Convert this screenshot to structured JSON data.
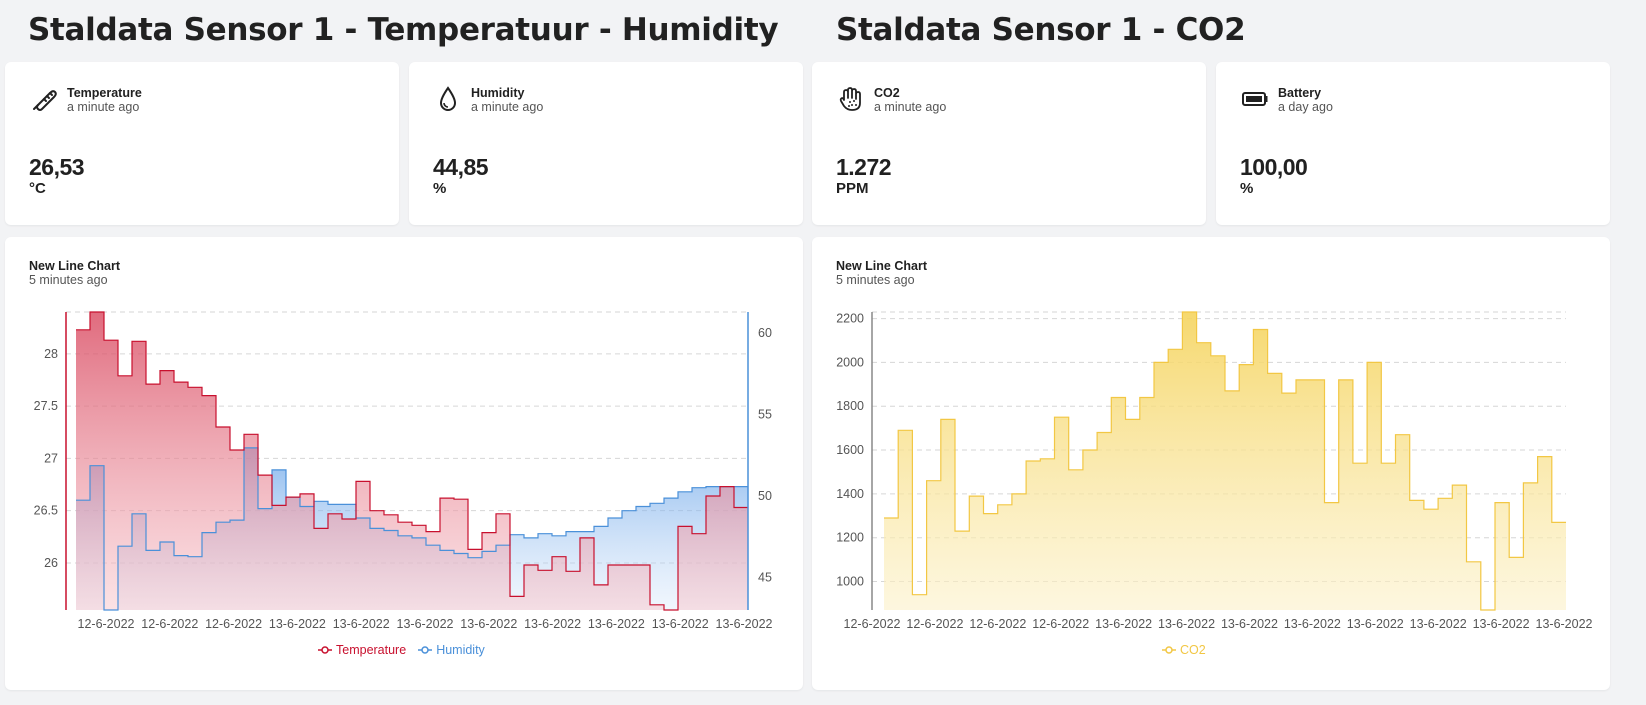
{
  "sections": [
    {
      "title": "Staldata Sensor 1 - Temperatuur - Humidity"
    },
    {
      "title": "Staldata Sensor 1 - CO2"
    }
  ],
  "metrics": [
    {
      "name": "Temperature",
      "time": "a minute ago",
      "value": "26,53",
      "unit": "°C",
      "icon": "thermometer-icon"
    },
    {
      "name": "Humidity",
      "time": "a minute ago",
      "value": "44,85",
      "unit": "%",
      "icon": "water-drop-icon"
    },
    {
      "name": "CO2",
      "time": "a minute ago",
      "value": "1.272",
      "unit": "PPM",
      "icon": "hand-dots-icon"
    },
    {
      "name": "Battery",
      "time": "a day ago",
      "value": "100,00",
      "unit": "%",
      "icon": "battery-icon"
    }
  ],
  "charts": [
    {
      "title": "New Line Chart",
      "time": "5 minutes ago"
    },
    {
      "title": "New Line Chart",
      "time": "5 minutes ago"
    }
  ],
  "chart_data": [
    {
      "type": "area",
      "x_ticks": [
        "12-6-2022",
        "12-6-2022",
        "12-6-2022",
        "13-6-2022",
        "13-6-2022",
        "13-6-2022",
        "13-6-2022",
        "13-6-2022",
        "13-6-2022",
        "13-6-2022",
        "13-6-2022"
      ],
      "y_left": {
        "ticks": [
          "26",
          "26.5",
          "27",
          "27.5",
          "28"
        ],
        "range": [
          25.55,
          28.4
        ]
      },
      "y_right": {
        "ticks": [
          "45",
          "50",
          "55",
          "60"
        ],
        "range": [
          43.0,
          61.3
        ]
      },
      "series": [
        {
          "name": "Temperature",
          "color": "#c8102e",
          "axis": "left",
          "values": [
            28.23,
            28.4,
            28.13,
            27.79,
            28.12,
            27.71,
            27.84,
            27.73,
            27.68,
            27.6,
            27.3,
            27.08,
            27.23,
            26.84,
            26.55,
            26.63,
            26.66,
            26.33,
            26.47,
            26.42,
            26.78,
            26.5,
            26.46,
            26.39,
            26.36,
            26.3,
            26.62,
            26.61,
            26.13,
            26.29,
            26.47,
            25.68,
            25.98,
            25.93,
            26.06,
            25.92,
            26.24,
            25.79,
            25.98,
            25.98,
            25.98,
            25.6,
            25.55,
            26.35,
            26.28,
            26.64,
            26.73,
            26.53
          ]
        },
        {
          "name": "Humidity",
          "color": "#4a90d9",
          "axis": "left",
          "values": [
            26.6,
            26.93,
            25.55,
            26.16,
            26.47,
            26.12,
            26.2,
            26.07,
            26.06,
            26.29,
            26.39,
            26.41,
            27.1,
            26.52,
            26.89,
            26.63,
            26.54,
            26.59,
            26.56,
            26.56,
            26.43,
            26.33,
            26.31,
            26.26,
            26.24,
            26.17,
            26.12,
            26.09,
            26.05,
            26.11,
            26.17,
            26.27,
            26.24,
            26.28,
            26.26,
            26.3,
            26.3,
            26.35,
            26.43,
            26.5,
            26.54,
            26.57,
            26.62,
            26.68,
            26.72,
            26.73,
            26.73,
            26.73
          ]
        }
      ]
    },
    {
      "type": "area",
      "x_ticks": [
        "12-6-2022",
        "12-6-2022",
        "12-6-2022",
        "12-6-2022",
        "13-6-2022",
        "13-6-2022",
        "13-6-2022",
        "13-6-2022",
        "13-6-2022",
        "13-6-2022",
        "13-6-2022",
        "13-6-2022"
      ],
      "y_ticks": [
        "1000",
        "1200",
        "1400",
        "1600",
        "1800",
        "2000",
        "2200"
      ],
      "y_range": [
        870,
        2230
      ],
      "series": [
        {
          "name": "CO2",
          "color": "#f2c744",
          "values": [
            1290,
            1690,
            940,
            1460,
            1740,
            1230,
            1390,
            1310,
            1350,
            1400,
            1550,
            1560,
            1750,
            1510,
            1600,
            1680,
            1840,
            1740,
            1840,
            2000,
            2060,
            2230,
            2090,
            2030,
            1870,
            1990,
            2150,
            1950,
            1860,
            1920,
            1920,
            1360,
            1920,
            1540,
            2000,
            1540,
            1670,
            1370,
            1330,
            1380,
            1440,
            1090,
            870,
            1360,
            1110,
            1450,
            1570,
            1270
          ]
        }
      ]
    }
  ]
}
